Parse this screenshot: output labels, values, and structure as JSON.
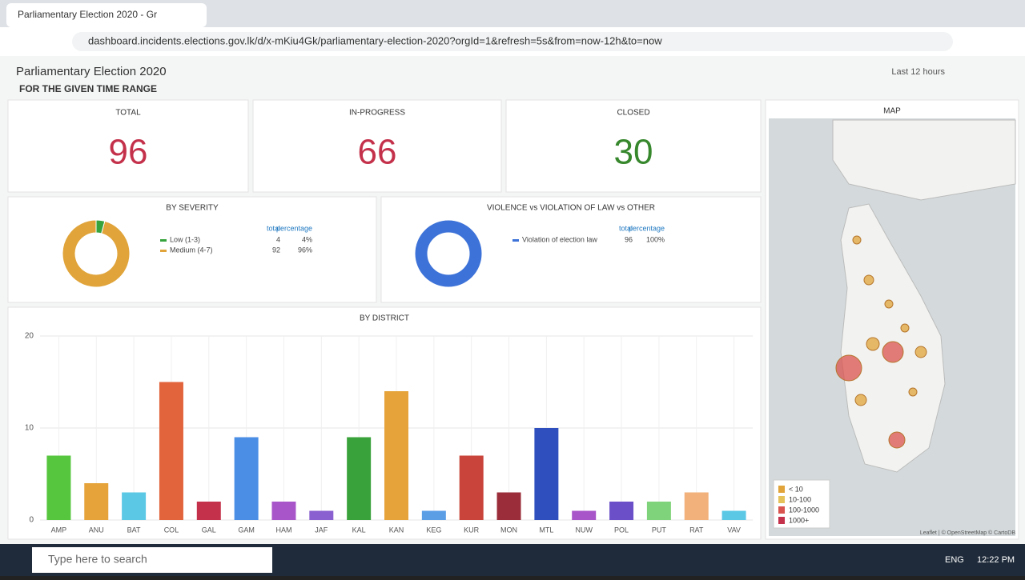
{
  "browser": {
    "tab_title": "Parliamentary Election 2020 - Gr",
    "url": "dashboard.incidents.elections.gov.lk/d/x-mKiu4Gk/parliamentary-election-2020?orgId=1&refresh=5s&from=now-12h&to=now"
  },
  "header": {
    "title": "Parliamentary Election 2020",
    "section": "FOR THE GIVEN TIME RANGE",
    "time_picker": "Last 12 hours"
  },
  "stats": [
    {
      "label": "TOTAL",
      "value": 96,
      "color": "#c4314b"
    },
    {
      "label": "IN-PROGRESS",
      "value": 66,
      "color": "#c4314b"
    },
    {
      "label": "CLOSED",
      "value": 30,
      "color": "#37872d"
    }
  ],
  "severity": {
    "title": "BY SEVERITY",
    "columns": [
      "total",
      "percentage"
    ],
    "rows": [
      {
        "name": "Low (1-3)",
        "total": 4,
        "percent": "4%",
        "color": "#37a33d"
      },
      {
        "name": "Medium (4-7)",
        "total": 92,
        "percent": "96%",
        "color": "#e0a43a"
      }
    ]
  },
  "violence": {
    "title": "VIOLENCE vs VIOLATION OF LAW vs OTHER",
    "columns": [
      "total",
      "percentage"
    ],
    "rows": [
      {
        "name": "Violation of election law",
        "total": 96,
        "percent": "100%",
        "color": "#3d72d8"
      }
    ]
  },
  "chart_data": {
    "type": "bar",
    "title": "BY DISTRICT",
    "categories": [
      "AMP",
      "ANU",
      "BAT",
      "COL",
      "GAL",
      "GAM",
      "HAM",
      "JAF",
      "KAL",
      "KAN",
      "KEG",
      "KUR",
      "MON",
      "MTL",
      "NUW",
      "POL",
      "PUT",
      "RAT",
      "VAV"
    ],
    "values": [
      7,
      4,
      3,
      15,
      2,
      9,
      2,
      1,
      9,
      14,
      1,
      7,
      3,
      10,
      1,
      2,
      2,
      3,
      1
    ],
    "colors": [
      "#56c63e",
      "#e6a33a",
      "#5bc8e6",
      "#e2643c",
      "#c4314b",
      "#4a8ee6",
      "#a855c9",
      "#8a5fcf",
      "#3aa23a",
      "#e6a33a",
      "#5b9ee6",
      "#c9443a",
      "#9b2d3a",
      "#2f4fbf",
      "#a855c9",
      "#6b4fc9",
      "#7fd37a",
      "#f2b07a",
      "#5bc8e6"
    ],
    "ylim": [
      0,
      20
    ],
    "yticks": [
      0,
      10,
      20
    ],
    "grid": true
  },
  "map": {
    "title": "MAP",
    "legend": [
      {
        "label": "< 10",
        "color": "#e0a43a"
      },
      {
        "label": "10-100",
        "color": "#e6c35a"
      },
      {
        "label": "100-1000",
        "color": "#d9534f"
      },
      {
        "label": "1000+",
        "color": "#c4314b"
      }
    ],
    "attribution": "Leaflet | © OpenStreetMap © CartoDB"
  },
  "taskbar": {
    "search": "Type here to search",
    "language": "ENG",
    "time": "12:22 PM"
  }
}
